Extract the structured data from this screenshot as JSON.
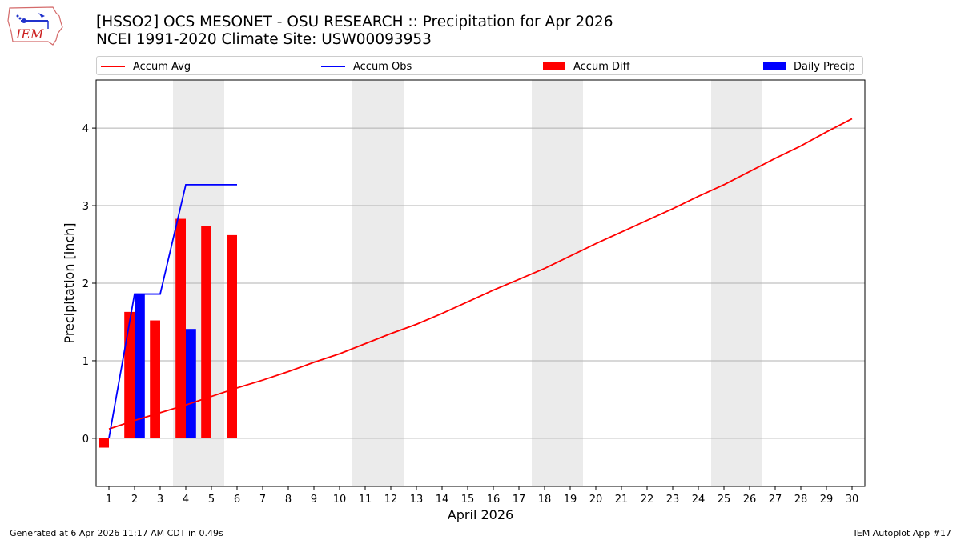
{
  "header": {
    "title_line1": "[HSSO2] OCS MESONET - OSU RESEARCH :: Precipitation for Apr 2026",
    "title_line2": "NCEI 1991-2020 Climate Site: USW00093953"
  },
  "logo": {
    "text": "IEM",
    "icon": "iem-iowa-logo-icon"
  },
  "footer": {
    "left": "Generated at 6 Apr 2026 11:17 AM CDT in 0.49s",
    "right": "IEM Autoplot App #17"
  },
  "chart_data": {
    "type": "bar",
    "xlabel": "April 2026",
    "ylabel": "Precipitation [inch]",
    "xlim": [
      0.5,
      30.5
    ],
    "ylim": [
      -0.62,
      4.62
    ],
    "x_ticks": [
      1,
      2,
      3,
      4,
      5,
      6,
      7,
      8,
      9,
      10,
      11,
      12,
      13,
      14,
      15,
      16,
      17,
      18,
      19,
      20,
      21,
      22,
      23,
      24,
      25,
      26,
      27,
      28,
      29,
      30
    ],
    "y_ticks": [
      0,
      1,
      2,
      3,
      4
    ],
    "grid": "y",
    "legend_placement": "top",
    "weekend_shading": [
      [
        3.5,
        5.5
      ],
      [
        10.5,
        12.5
      ],
      [
        17.5,
        19.5
      ],
      [
        24.5,
        26.5
      ]
    ],
    "series": [
      {
        "name": "Accum Avg",
        "kind": "line",
        "color": "#ff0000",
        "x": [
          1,
          2,
          3,
          4,
          5,
          6,
          7,
          8,
          9,
          10,
          11,
          12,
          13,
          14,
          15,
          16,
          17,
          18,
          19,
          20,
          21,
          22,
          23,
          24,
          25,
          26,
          27,
          28,
          29,
          30
        ],
        "values": [
          0.12,
          0.23,
          0.33,
          0.43,
          0.54,
          0.65,
          0.75,
          0.86,
          0.98,
          1.09,
          1.22,
          1.35,
          1.47,
          1.61,
          1.76,
          1.91,
          2.05,
          2.19,
          2.35,
          2.51,
          2.66,
          2.81,
          2.96,
          3.12,
          3.27,
          3.44,
          3.61,
          3.77,
          3.95,
          4.12
        ]
      },
      {
        "name": "Accum Obs",
        "kind": "line",
        "color": "#0000ff",
        "x": [
          1,
          2,
          3,
          4,
          5,
          6
        ],
        "values": [
          0.0,
          1.86,
          1.86,
          3.27,
          3.27,
          3.27
        ]
      },
      {
        "name": "Accum Diff",
        "kind": "bar",
        "color": "#ff0000",
        "x": [
          1,
          2,
          3,
          4,
          5,
          6
        ],
        "values": [
          -0.12,
          1.63,
          1.52,
          2.83,
          2.74,
          2.62
        ]
      },
      {
        "name": "Daily Precip",
        "kind": "bar",
        "color": "#0000ff",
        "x": [
          1,
          2,
          3,
          4,
          5,
          6
        ],
        "values": [
          0.0,
          1.86,
          0.0,
          1.41,
          0.0,
          0.0
        ]
      }
    ]
  }
}
